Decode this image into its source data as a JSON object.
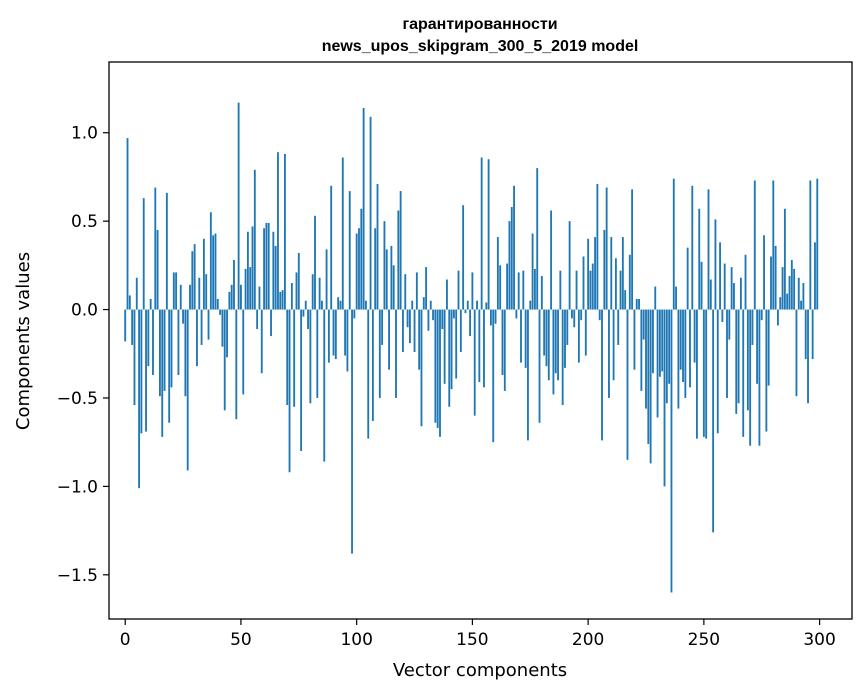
{
  "chart_data": {
    "type": "bar",
    "title": "гарантированности",
    "subtitle": "news_upos_skipgram_300_5_2019 model",
    "xlabel": "Vector components",
    "ylabel": "Components values",
    "xlim": [
      -7,
      314
    ],
    "ylim": [
      -1.75,
      1.4
    ],
    "xticks": [
      0,
      50,
      100,
      150,
      200,
      250,
      300
    ],
    "yticks": [
      -1.5,
      -1.0,
      -0.5,
      0.0,
      0.5,
      1.0
    ],
    "ytick_labels": [
      "−1.5",
      "−1.0",
      "−0.5",
      "0.0",
      "0.5",
      "1.0"
    ],
    "xtick_labels": [
      "0",
      "50",
      "100",
      "150",
      "200",
      "250",
      "300"
    ],
    "bar_color": "#1f77b4",
    "x": "indices 0..299",
    "values": [
      -0.18,
      0.97,
      0.08,
      -0.2,
      -0.54,
      0.18,
      -1.01,
      -0.7,
      0.63,
      -0.69,
      -0.32,
      0.06,
      -0.37,
      0.69,
      0.45,
      -0.49,
      -0.72,
      -0.46,
      0.66,
      -0.64,
      -0.44,
      0.21,
      0.21,
      -0.37,
      0.14,
      -0.08,
      -0.49,
      -0.91,
      0.14,
      0.33,
      0.37,
      -0.32,
      0.18,
      -0.2,
      0.4,
      0.2,
      -0.17,
      0.55,
      0.42,
      0.43,
      0.06,
      -0.03,
      -0.21,
      -0.57,
      -0.27,
      0.1,
      0.14,
      0.28,
      -0.62,
      1.17,
      0.14,
      -0.48,
      0.23,
      0.44,
      0.24,
      0.47,
      0.79,
      -0.11,
      0.13,
      -0.36,
      0.46,
      0.49,
      0.49,
      -0.15,
      0.44,
      0.36,
      0.89,
      0.1,
      0.11,
      0.88,
      -0.54,
      -0.92,
      0.15,
      -0.55,
      0.21,
      0.32,
      -0.8,
      -0.04,
      0.05,
      -0.11,
      -0.53,
      0.2,
      0.53,
      -0.5,
      0.18,
      0.05,
      -0.86,
      0.34,
      -0.3,
      0.7,
      -0.26,
      -0.28,
      0.07,
      0.05,
      0.86,
      -0.26,
      -0.35,
      0.67,
      -1.38,
      -0.05,
      0.43,
      0.46,
      0.57,
      1.14,
      0.05,
      -0.73,
      1.09,
      -0.63,
      0.46,
      0.71,
      -0.5,
      -0.2,
      0.5,
      0.34,
      -0.34,
      0.36,
      0.25,
      -0.5,
      0.56,
      0.67,
      -0.24,
      0.2,
      -0.1,
      -0.19,
      0.05,
      -0.24,
      0.21,
      -0.34,
      -0.66,
      0.07,
      0.24,
      -0.12,
      0.05,
      -0.06,
      -0.64,
      -0.67,
      -0.72,
      -0.11,
      -0.42,
      0.17,
      -0.55,
      -0.45,
      -0.05,
      -0.39,
      0.22,
      -0.24,
      0.59,
      -0.02,
      0.05,
      -0.15,
      0.21,
      -0.6,
      0.05,
      -0.41,
      0.86,
      -0.44,
      0.04,
      0.85,
      -0.09,
      -0.75,
      -0.08,
      0.41,
      0.25,
      -0.37,
      -0.46,
      0.26,
      0.5,
      0.58,
      0.7,
      -0.05,
      0.21,
      -0.3,
      0.22,
      -0.33,
      -0.74,
      0.05,
      0.43,
      0.23,
      0.8,
      -0.64,
      0.19,
      -0.26,
      -0.32,
      -0.4,
      0.56,
      -0.48,
      -0.36,
      -0.4,
      0.22,
      -0.54,
      -0.33,
      -0.2,
      0.5,
      -0.05,
      -0.1,
      0.22,
      -0.3,
      -0.06,
      0.3,
      -0.26,
      0.4,
      0.22,
      0.26,
      0.41,
      0.71,
      -0.06,
      -0.74,
      0.45,
      0.69,
      -0.5,
      0.41,
      -0.4,
      0.29,
      -0.2,
      0.22,
      0.41,
      0.11,
      -0.85,
      0.31,
      0.68,
      -0.34,
      0.06,
      0.06,
      -0.46,
      -0.17,
      -0.56,
      -0.76,
      -0.87,
      -0.36,
      0.13,
      -0.61,
      -0.38,
      -0.35,
      -1.0,
      -0.53,
      -0.42,
      -1.6,
      0.74,
      0.13,
      -0.56,
      -0.34,
      -0.41,
      -0.5,
      0.35,
      -0.44,
      0.7,
      -0.3,
      -0.73,
      0.57,
      0.27,
      -0.72,
      -0.73,
      0.68,
      0.17,
      -1.26,
      0.51,
      -0.7,
      0.38,
      -0.07,
      0.26,
      -0.5,
      -0.17,
      0.24,
      0.15,
      -0.59,
      -0.53,
      0.18,
      -0.72,
      0.31,
      -0.57,
      -0.77,
      -0.2,
      0.73,
      -0.42,
      -0.77,
      -0.06,
      0.42,
      -0.69,
      -0.43,
      0.3,
      0.73,
      0.36,
      -0.09,
      0.07,
      0.24,
      0.57,
      0.09,
      0.19,
      0.28,
      0.23,
      -0.49,
      0.18,
      0.05,
      0.15,
      -0.28,
      -0.53,
      0.73,
      -0.28,
      0.38,
      0.74
    ]
  }
}
